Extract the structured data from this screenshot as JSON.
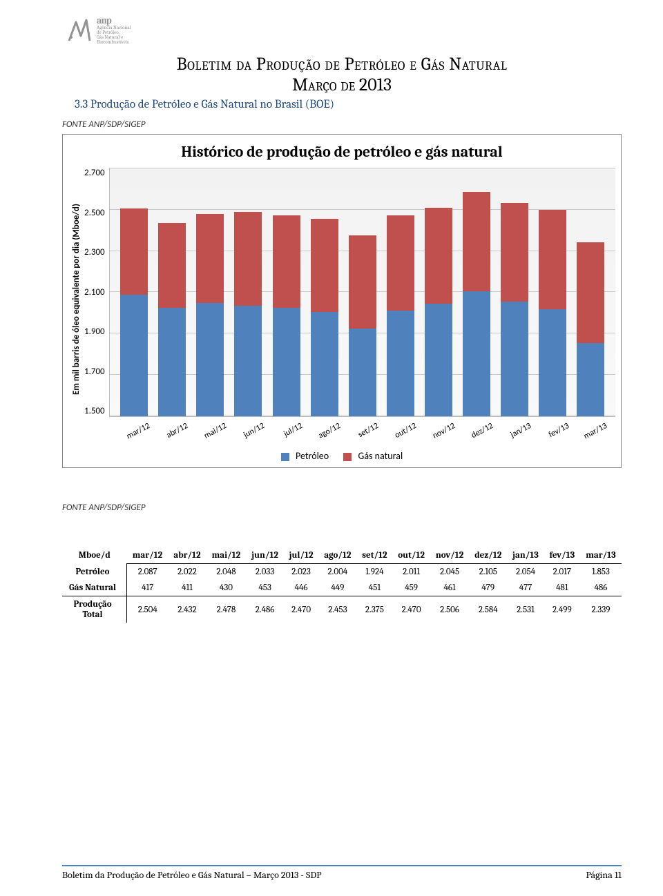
{
  "header": {
    "agency_line1": "Agência Nacional",
    "agency_line2": "de Petróleo,",
    "agency_line3": "Gás Natural e Biocombustíveis",
    "title": "Boletim da Produção de Petróleo e Gás Natural",
    "subtitle": "Março de 2013",
    "section": "3.3   Produção de Petróleo e Gás Natural no Brasil (BOE)"
  },
  "source_label": "FONTE ANP/SDP/SIGEP",
  "chart": {
    "type": "stacked-bar",
    "title": "Histórico de produção de petróleo e gás natural",
    "y_label": "Em mil barris de óleo equivalente por dia (Mboe/d)",
    "y_min": 1500,
    "y_max": 2700,
    "y_ticks": [
      "2.700",
      "2.500",
      "2.300",
      "2.100",
      "1.900",
      "1.700",
      "1.500"
    ],
    "categories": [
      "mar/12",
      "abr/12",
      "mai/12",
      "jun/12",
      "jul/12",
      "ago/12",
      "set/12",
      "out/12",
      "nov/12",
      "dez/12",
      "jan/13",
      "fev/13",
      "mar/13"
    ],
    "series": [
      {
        "name": "Petróleo",
        "color": "#4f81bd",
        "values": [
          2087,
          2022,
          2048,
          2033,
          2023,
          2004,
          1924,
          2011,
          2045,
          2105,
          2054,
          2017,
          1853
        ]
      },
      {
        "name": "Gás natural",
        "color": "#c0504d",
        "values": [
          417,
          411,
          430,
          453,
          446,
          449,
          451,
          459,
          461,
          479,
          477,
          481,
          486
        ]
      }
    ],
    "legend": {
      "petroleo": "Petróleo",
      "gas": "Gás natural"
    },
    "plot_bg": "#f5f5f5",
    "grid_color": "#c8c8c8"
  },
  "table": {
    "header_label": "Mboe/d",
    "columns": [
      "mar/12",
      "abr/12",
      "mai/12",
      "jun/12",
      "jul/12",
      "ago/12",
      "set/12",
      "out/12",
      "nov/12",
      "dez/12",
      "jan/13",
      "fev/13",
      "mar/13"
    ],
    "rows": [
      {
        "label": "Petróleo",
        "cells": [
          "2.087",
          "2.022",
          "2.048",
          "2.033",
          "2.023",
          "2.004",
          "1.924",
          "2.011",
          "2.045",
          "2.105",
          "2.054",
          "2.017",
          "1.853"
        ]
      },
      {
        "label": "Gás Natural",
        "cells": [
          "417",
          "411",
          "430",
          "453",
          "446",
          "449",
          "451",
          "459",
          "461",
          "479",
          "477",
          "481",
          "486"
        ]
      },
      {
        "label": "Produção Total",
        "cells": [
          "2.504",
          "2.432",
          "2.478",
          "2.486",
          "2.470",
          "2.453",
          "2.375",
          "2.470",
          "2.506",
          "2.584",
          "2.531",
          "2.499",
          "2.339"
        ]
      }
    ]
  },
  "footer": {
    "left": "Boletim da Produção de Petróleo e Gás Natural – Março 2013 - SDP",
    "right": "Página 11"
  }
}
